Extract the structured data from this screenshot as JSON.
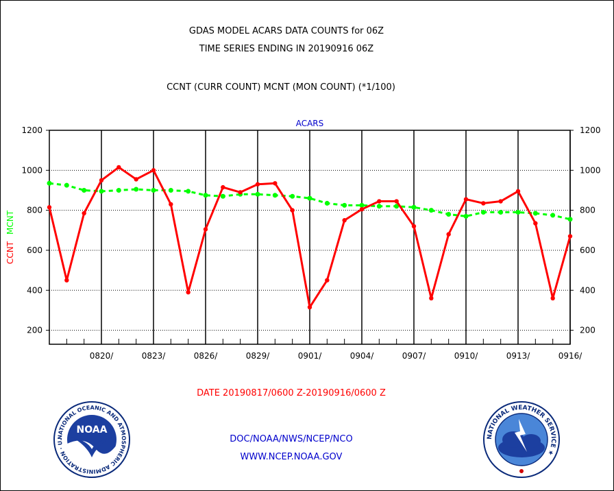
{
  "header": {
    "title_line1": "GDAS MODEL ACARS DATA COUNTS for 06Z",
    "title_line2": "TIME SERIES ENDING IN 20190916 06Z",
    "subtitle": "CCNT (CURR COUNT) MCNT (MON COUNT) (*1/100)"
  },
  "footer": {
    "date_range": "DATE 20190817/0600 Z-20190916/0600 Z",
    "org": "DOC/NOAA/NWS/NCEP/NCO",
    "url": "WWW.NCEP.NOAA.GOV"
  },
  "logos": {
    "noaa_text": "NOAA",
    "noaa_ring": "NATIONAL OCEANIC AND ATMOSPHERIC ADMINISTRATION · U.S. DEPARTMENT OF COMMERCE ·",
    "nws_ring": "NATIONAL WEATHER SERVICE ★"
  },
  "colors": {
    "ccnt": "#ff0000",
    "mcnt": "#00ff00",
    "header_text": "#000000",
    "date_text": "#ff0000",
    "link_text": "#0000cc",
    "plot_label": "#0000cc"
  },
  "chart_data": {
    "type": "line",
    "plot_label": "ACARS",
    "ylabel_ccnt": "CCNT",
    "ylabel_mcnt": "MCNT",
    "ylim": [
      130,
      1200
    ],
    "yticks": [
      200,
      400,
      600,
      800,
      1000,
      1200
    ],
    "x_day_index_range": [
      0,
      30
    ],
    "x_tick_labels": [
      {
        "day": 3,
        "label": "0820/"
      },
      {
        "day": 6,
        "label": "0823/"
      },
      {
        "day": 9,
        "label": "0826/"
      },
      {
        "day": 12,
        "label": "0829/"
      },
      {
        "day": 15,
        "label": "0901/"
      },
      {
        "day": 18,
        "label": "0904/"
      },
      {
        "day": 21,
        "label": "0907/"
      },
      {
        "day": 24,
        "label": "0910/"
      },
      {
        "day": 27,
        "label": "0913/"
      },
      {
        "day": 30,
        "label": "0916/"
      }
    ],
    "grid": true,
    "series": [
      {
        "name": "CCNT",
        "color": "#ff0000",
        "values": [
          815,
          450,
          785,
          950,
          1015,
          955,
          1000,
          830,
          390,
          705,
          915,
          890,
          930,
          935,
          800,
          315,
          450,
          750,
          805,
          845,
          845,
          720,
          360,
          680,
          855,
          835,
          845,
          895,
          735,
          360,
          670
        ]
      },
      {
        "name": "MCNT",
        "color": "#00ff00",
        "values": [
          935,
          925,
          900,
          895,
          900,
          905,
          900,
          900,
          895,
          875,
          870,
          880,
          880,
          875,
          870,
          860,
          835,
          825,
          825,
          820,
          820,
          815,
          800,
          780,
          770,
          790,
          790,
          790,
          785,
          775,
          755
        ]
      }
    ]
  }
}
